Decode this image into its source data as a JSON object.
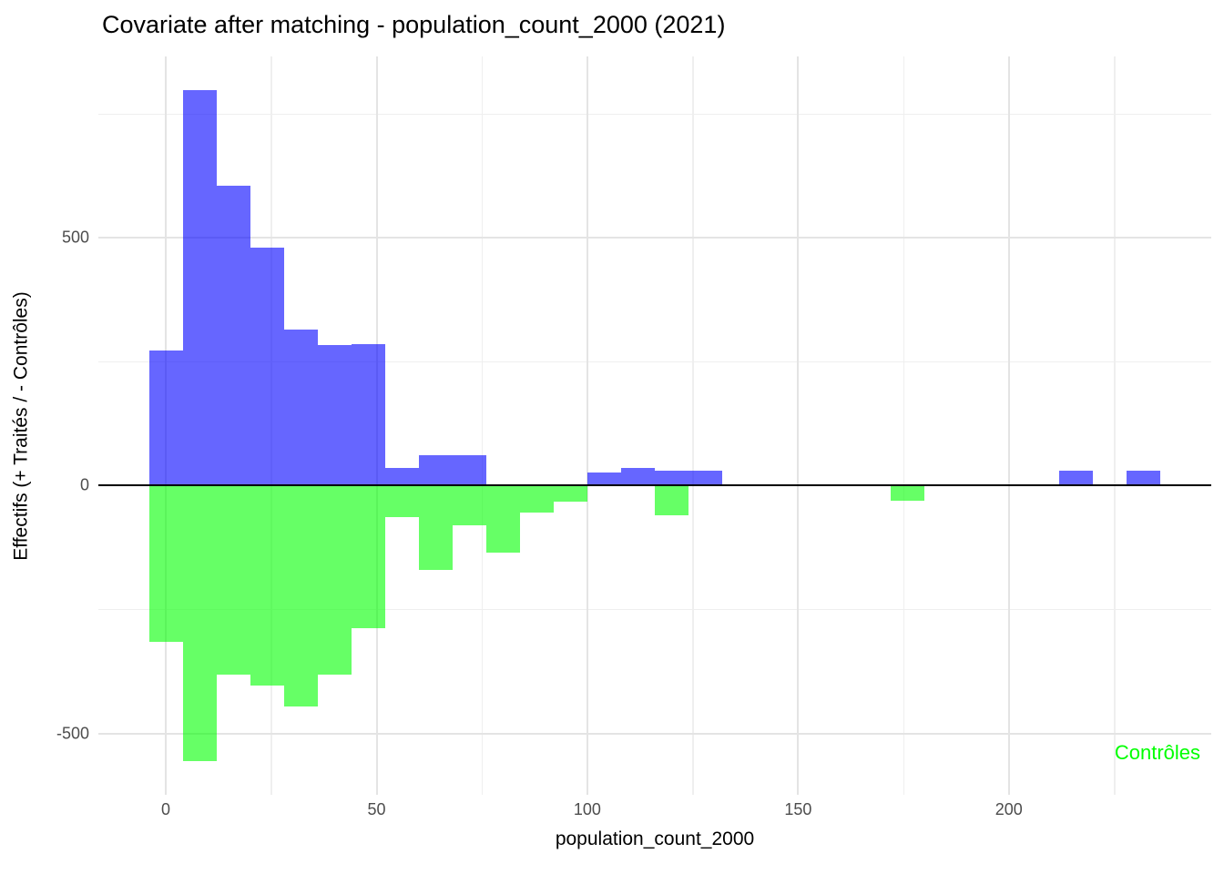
{
  "title": "Covariate after matching - population_count_2000 (2021)",
  "chart_data": {
    "type": "bar",
    "subtype": "mirrored-histogram",
    "title": "Covariate after matching - population_count_2000 (2021)",
    "xlabel": "population_count_2000",
    "ylabel": "Effectifs (+ Traités / - Contrôles)",
    "xlim": [
      -16,
      248
    ],
    "ylim": [
      -624,
      866
    ],
    "binwidth": 8,
    "x_major_ticks": [
      0,
      50,
      100,
      150,
      200
    ],
    "x_minor_ticks": [
      25,
      75,
      125,
      175,
      225
    ],
    "y_major_ticks": [
      -500,
      0,
      500
    ],
    "y_minor_ticks": [
      -250,
      250,
      750
    ],
    "grid": true,
    "legend_position": "none",
    "zero_line": 0,
    "series": [
      {
        "name": "Traités",
        "color": "rgba(0,0,255,0.6)",
        "color_flat": "#6666ff",
        "side": "positive"
      },
      {
        "name": "Contrôles",
        "color": "rgba(0,255,0,0.6)",
        "color_flat": "#66ff66",
        "side": "negative"
      }
    ],
    "bins": [
      {
        "x": 0,
        "treated": 272,
        "controls": -316
      },
      {
        "x": 8,
        "treated": 798,
        "controls": -556
      },
      {
        "x": 16,
        "treated": 605,
        "controls": -381
      },
      {
        "x": 24,
        "treated": 480,
        "controls": -403
      },
      {
        "x": 32,
        "treated": 315,
        "controls": -446
      },
      {
        "x": 40,
        "treated": 283,
        "controls": -381
      },
      {
        "x": 48,
        "treated": 285,
        "controls": -287
      },
      {
        "x": 56,
        "treated": 36,
        "controls": -63
      },
      {
        "x": 64,
        "treated": 61,
        "controls": -170
      },
      {
        "x": 72,
        "treated": 61,
        "controls": -81
      },
      {
        "x": 80,
        "treated": 0,
        "controls": -135
      },
      {
        "x": 88,
        "treated": 0,
        "controls": -55
      },
      {
        "x": 96,
        "treated": 0,
        "controls": -32
      },
      {
        "x": 104,
        "treated": 27,
        "controls": 0
      },
      {
        "x": 112,
        "treated": 35,
        "controls": 0
      },
      {
        "x": 120,
        "treated": 30,
        "controls": -60
      },
      {
        "x": 128,
        "treated": 30,
        "controls": 0
      },
      {
        "x": 176,
        "treated": 0,
        "controls": -31
      },
      {
        "x": 216,
        "treated": 30,
        "controls": 0
      },
      {
        "x": 232,
        "treated": 30,
        "controls": 0
      }
    ],
    "annotation": {
      "text": "Contrôles",
      "color": "#00ff00"
    }
  }
}
